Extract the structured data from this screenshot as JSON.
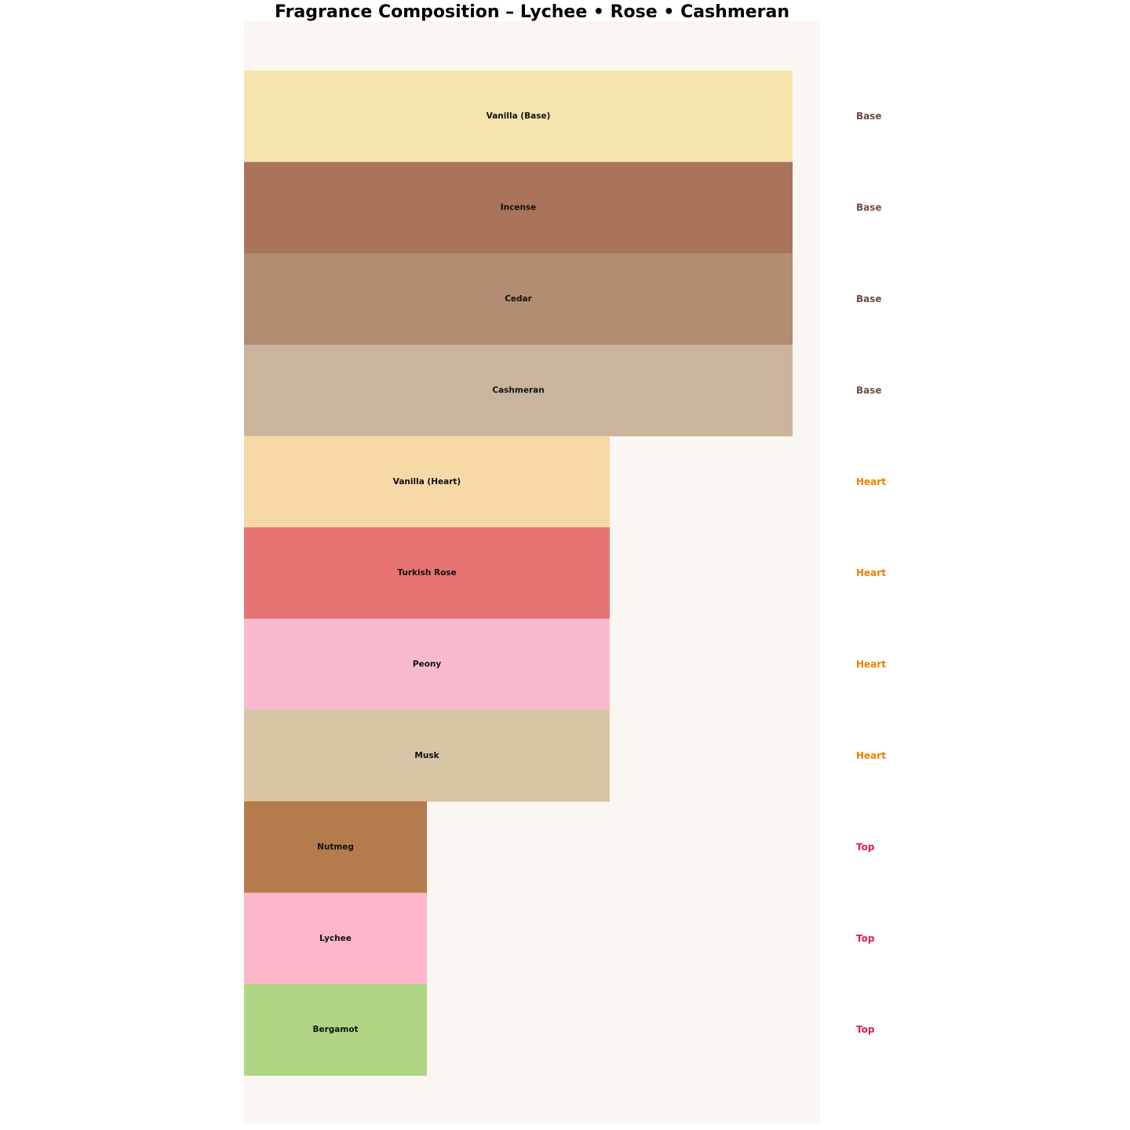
{
  "chart_data": {
    "type": "bar",
    "orientation": "horizontal",
    "title": "Fragrance Composition – Lychee • Rose • Cashmeran",
    "xlabel": "",
    "ylabel": "",
    "xlim": [
      0,
      3.15
    ],
    "grid": false,
    "background_color": "#FAF7F2",
    "bars": [
      {
        "label": "Vanilla (Base)",
        "value": 3,
        "layer": "Base",
        "color": "#F5E4AD"
      },
      {
        "label": "Incense",
        "value": 3,
        "layer": "Base",
        "color": "#AA745A"
      },
      {
        "label": "Cedar",
        "value": 3,
        "layer": "Base",
        "color": "#B28D71"
      },
      {
        "label": "Cashmeran",
        "value": 3,
        "layer": "Base",
        "color": "#CAB49B"
      },
      {
        "label": "Vanilla (Heart)",
        "value": 2,
        "layer": "Heart",
        "color": "#F7D9A8"
      },
      {
        "label": "Turkish Rose",
        "value": 2,
        "layer": "Heart",
        "color": "#E77373"
      },
      {
        "label": "Peony",
        "value": 2,
        "layer": "Heart",
        "color": "#F8BAD0"
      },
      {
        "label": "Musk",
        "value": 2,
        "layer": "Heart",
        "color": "#D8C5A5"
      },
      {
        "label": "Nutmeg",
        "value": 1,
        "layer": "Top",
        "color": "#B47B4C"
      },
      {
        "label": "Lychee",
        "value": 1,
        "layer": "Top",
        "color": "#FFB6C8"
      },
      {
        "label": "Bergamot",
        "value": 1,
        "layer": "Top",
        "color": "#AFD584"
      }
    ],
    "layer_colors": {
      "Base": "#6D4C41",
      "Heart": "#EF7D00",
      "Top": "#D81B60"
    }
  }
}
